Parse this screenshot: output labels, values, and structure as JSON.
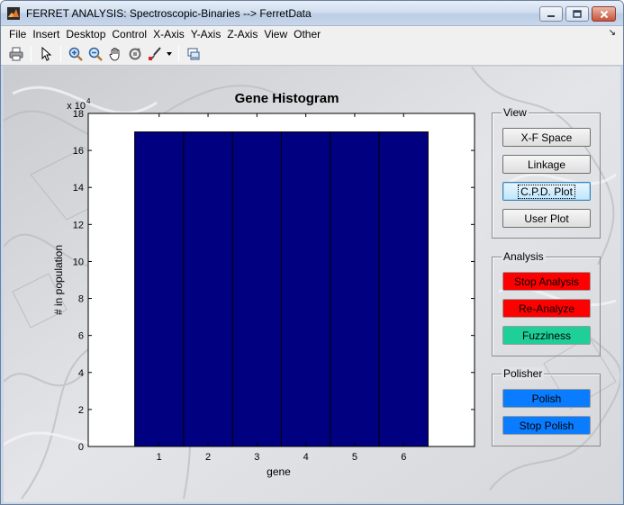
{
  "window": {
    "title": "FERRET ANALYSIS: Spectroscopic-Binaries --> FerretData"
  },
  "menu": [
    "File",
    "Insert",
    "Desktop",
    "Control",
    "X-Axis",
    "Y-Axis",
    "Z-Axis",
    "View",
    "Other"
  ],
  "toolbar": {
    "icons": [
      "print-icon",
      "pointer-icon",
      "zoom-in-icon",
      "zoom-out-icon",
      "pan-hand-icon",
      "rotate-icon",
      "data-brush-icon",
      "brush-dropdown-icon",
      "link-plot-icon"
    ]
  },
  "panels": {
    "view": {
      "title": "View",
      "buttons": [
        "X-F Space",
        "Linkage",
        "C.P.D. Plot",
        "User Plot"
      ]
    },
    "analysis": {
      "title": "Analysis",
      "buttons": [
        "Stop Analysis",
        "Re-Analyze",
        "Fuzziness"
      ]
    },
    "polisher": {
      "title": "Polisher",
      "buttons": [
        "Polish",
        "Stop Polish"
      ]
    }
  },
  "colors": {
    "bar_fill": "#000080",
    "analysis_red": "#ff0000",
    "fuzziness_teal": "#1ecf9a",
    "polisher_blue": "#0a7cff"
  },
  "chart_data": {
    "type": "bar",
    "title": "Gene Histogram",
    "xlabel": "gene",
    "ylabel": "# in population",
    "y_exponent_label": "x 10",
    "y_exponent": "4",
    "categories": [
      "1",
      "2",
      "3",
      "4",
      "5",
      "6"
    ],
    "values": [
      170000,
      170000,
      170000,
      170000,
      170000,
      170000
    ],
    "ylim": [
      0,
      180000
    ],
    "y_ticks": [
      "0",
      "2",
      "4",
      "6",
      "8",
      "10",
      "12",
      "14",
      "16",
      "18"
    ],
    "grid": false,
    "legend": "none"
  }
}
